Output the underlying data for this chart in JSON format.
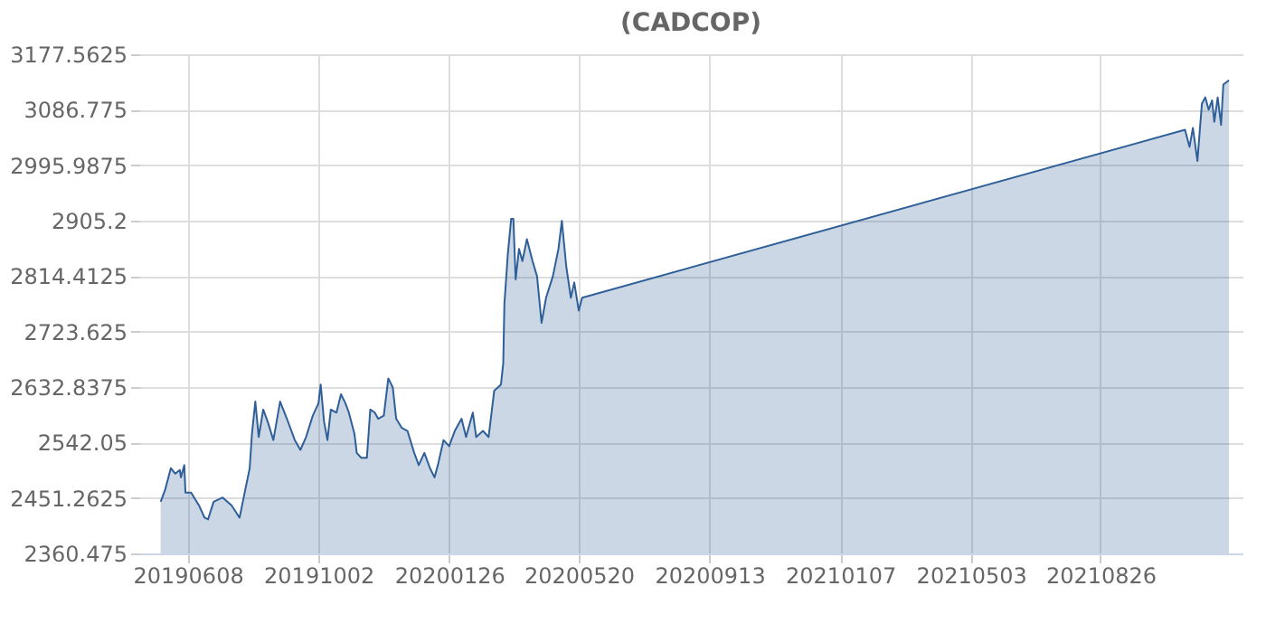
{
  "chart_data": {
    "type": "area",
    "title": "(CADCOP)",
    "x": [
      "2019-05-15",
      "2019-05-19",
      "2019-05-24",
      "2019-05-28",
      "2019-06-01",
      "2019-06-02",
      "2019-06-05",
      "2019-06-06",
      "2019-06-11",
      "2019-06-18",
      "2019-06-23",
      "2019-06-26",
      "2019-07-01",
      "2019-07-09",
      "2019-07-17",
      "2019-07-24",
      "2019-07-28",
      "2019-08-02",
      "2019-08-04",
      "2019-08-07",
      "2019-08-10",
      "2019-08-14",
      "2019-08-18",
      "2019-08-23",
      "2019-08-29",
      "2019-09-04",
      "2019-09-11",
      "2019-09-16",
      "2019-09-21",
      "2019-09-27",
      "2019-10-02",
      "2019-10-04",
      "2019-10-07",
      "2019-10-10",
      "2019-10-13",
      "2019-10-18",
      "2019-10-22",
      "2019-10-26",
      "2019-10-29",
      "2019-11-03",
      "2019-11-05",
      "2019-11-09",
      "2019-11-14",
      "2019-11-17",
      "2019-11-21",
      "2019-11-24",
      "2019-11-29",
      "2019-12-03",
      "2019-12-07",
      "2019-12-10",
      "2019-12-15",
      "2019-12-20",
      "2019-12-26",
      "2019-12-30",
      "2020-01-04",
      "2020-01-09",
      "2020-01-13",
      "2020-01-16",
      "2020-01-21",
      "2020-01-26",
      "2020-01-31",
      "2020-02-06",
      "2020-02-10",
      "2020-02-16",
      "2020-02-19",
      "2020-02-25",
      "2020-03-01",
      "2020-03-06",
      "2020-03-12",
      "2020-03-14",
      "2020-03-15",
      "2020-03-18",
      "2020-03-21",
      "2020-03-23",
      "2020-03-25",
      "2020-03-28",
      "2020-03-31",
      "2020-04-04",
      "2020-04-09",
      "2020-04-13",
      "2020-04-17",
      "2020-04-21",
      "2020-04-27",
      "2020-05-02",
      "2020-05-05",
      "2020-05-09",
      "2020-05-13",
      "2020-05-16",
      "2020-05-20",
      "2020-05-23",
      "2021-11-09",
      "2021-11-13",
      "2021-11-16",
      "2021-11-20",
      "2021-11-24",
      "2021-11-27",
      "2021-11-30",
      "2021-12-03",
      "2021-12-05",
      "2021-12-08",
      "2021-12-11",
      "2021-12-13",
      "2021-12-18"
    ],
    "series": [
      {
        "color": "#2f5f98",
        "values": [
          2445,
          2465,
          2500,
          2491,
          2497,
          2485,
          2505,
          2460,
          2460,
          2439,
          2419,
          2416,
          2445,
          2452,
          2439,
          2419,
          2455,
          2500,
          2556,
          2609,
          2551,
          2596,
          2576,
          2546,
          2609,
          2581,
          2546,
          2530,
          2551,
          2586,
          2606,
          2637,
          2576,
          2546,
          2596,
          2591,
          2621,
          2606,
          2591,
          2556,
          2525,
          2517,
          2517,
          2596,
          2591,
          2581,
          2586,
          2647,
          2632,
          2581,
          2566,
          2561,
          2525,
          2505,
          2525,
          2500,
          2485,
          2505,
          2546,
          2536,
          2561,
          2581,
          2551,
          2591,
          2551,
          2561,
          2551,
          2627,
          2637,
          2672,
          2768,
          2849,
          2908,
          2908,
          2809,
          2859,
          2839,
          2875,
          2839,
          2814,
          2738,
          2779,
          2814,
          2859,
          2905,
          2829,
          2779,
          2804,
          2758,
          2779,
          3054,
          3026,
          3057,
          3003,
          3097,
          3107,
          3087,
          3102,
          3067,
          3107,
          3062,
          3128,
          3135
        ]
      }
    ],
    "xlim": [
      "2019-04-26",
      "2021-12-30"
    ],
    "xticks": [
      {
        "value": "2019-06-08",
        "label": "20190608"
      },
      {
        "value": "2019-10-02",
        "label": "20191002"
      },
      {
        "value": "2020-01-26",
        "label": "20200126"
      },
      {
        "value": "2020-05-20",
        "label": "20200520"
      },
      {
        "value": "2020-09-13",
        "label": "20200913"
      },
      {
        "value": "2021-01-07",
        "label": "20210107"
      },
      {
        "value": "2021-05-03",
        "label": "20210503"
      },
      {
        "value": "2021-08-26",
        "label": "20210826"
      }
    ],
    "ylim": [
      2360.475,
      3177.5625
    ],
    "yticks": [
      2360.475,
      2451.2625,
      2542.05,
      2632.8375,
      2723.625,
      2814.4125,
      2905.2,
      2995.9875,
      3086.775,
      3177.5625
    ],
    "grid": true
  }
}
